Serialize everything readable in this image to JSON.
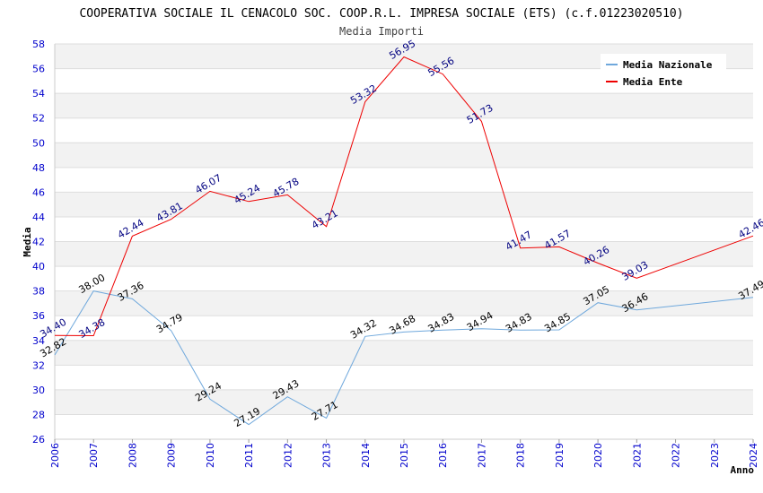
{
  "chart_data": {
    "type": "line",
    "title": "COOPERATIVA SOCIALE IL CENACOLO SOC. COOP.R.L. IMPRESA SOCIALE (ETS) (c.f.01223020510)",
    "subtitle": "Media Importi",
    "xlabel": "Anno",
    "ylabel": "Media",
    "x": [
      "2006",
      "2007",
      "2008",
      "2009",
      "2010",
      "2011",
      "2012",
      "2013",
      "2014",
      "2015",
      "2016",
      "2017",
      "2018",
      "2019",
      "2020",
      "2021",
      "2022",
      "2023",
      "2024"
    ],
    "ylim": [
      26,
      58
    ],
    "yticks": [
      26,
      28,
      30,
      32,
      34,
      36,
      38,
      40,
      42,
      44,
      46,
      48,
      50,
      52,
      54,
      56,
      58
    ],
    "grid": "horizontal alternating bands",
    "legend_position": "top-right",
    "series": [
      {
        "name": "Media Nazionale",
        "color": "#6fa8dc",
        "label_color": "#000000",
        "x": [
          "2006",
          "2007",
          "2008",
          "2009",
          "2010",
          "2011",
          "2012",
          "2013",
          "2014",
          "2015",
          "2016",
          "2017",
          "2018",
          "2019",
          "2020",
          "2021",
          "2024"
        ],
        "values": [
          32.82,
          38.0,
          37.36,
          34.79,
          29.24,
          27.19,
          29.43,
          27.71,
          34.32,
          34.68,
          34.83,
          34.94,
          34.83,
          34.85,
          37.05,
          36.46,
          37.49
        ],
        "labels": [
          "32.82",
          "38.00",
          "37.36",
          "34.79",
          "29.24",
          "27.19",
          "29.43",
          "27.71",
          "34.32",
          "34.68",
          "34.83",
          "34.94",
          "34.83",
          "34.85",
          "37.05",
          "36.46",
          "37.49"
        ]
      },
      {
        "name": "Media Ente",
        "color": "#ee0000",
        "label_color": "#000080",
        "x": [
          "2006",
          "2007",
          "2008",
          "2009",
          "2010",
          "2011",
          "2012",
          "2013",
          "2014",
          "2015",
          "2016",
          "2017",
          "2018",
          "2019",
          "2020",
          "2021",
          "2024"
        ],
        "values": [
          34.4,
          34.38,
          42.44,
          43.81,
          46.07,
          45.24,
          45.78,
          43.21,
          53.32,
          56.95,
          55.56,
          51.73,
          41.47,
          41.57,
          40.26,
          39.03,
          42.46
        ],
        "labels": [
          "34.40",
          "34.38",
          "42.44",
          "43.81",
          "46.07",
          "45.24",
          "45.78",
          "43.21",
          "53.32",
          "56.95",
          "55.56",
          "51.73",
          "41.47",
          "41.57",
          "40.26",
          "39.03",
          "42.46"
        ]
      }
    ]
  }
}
